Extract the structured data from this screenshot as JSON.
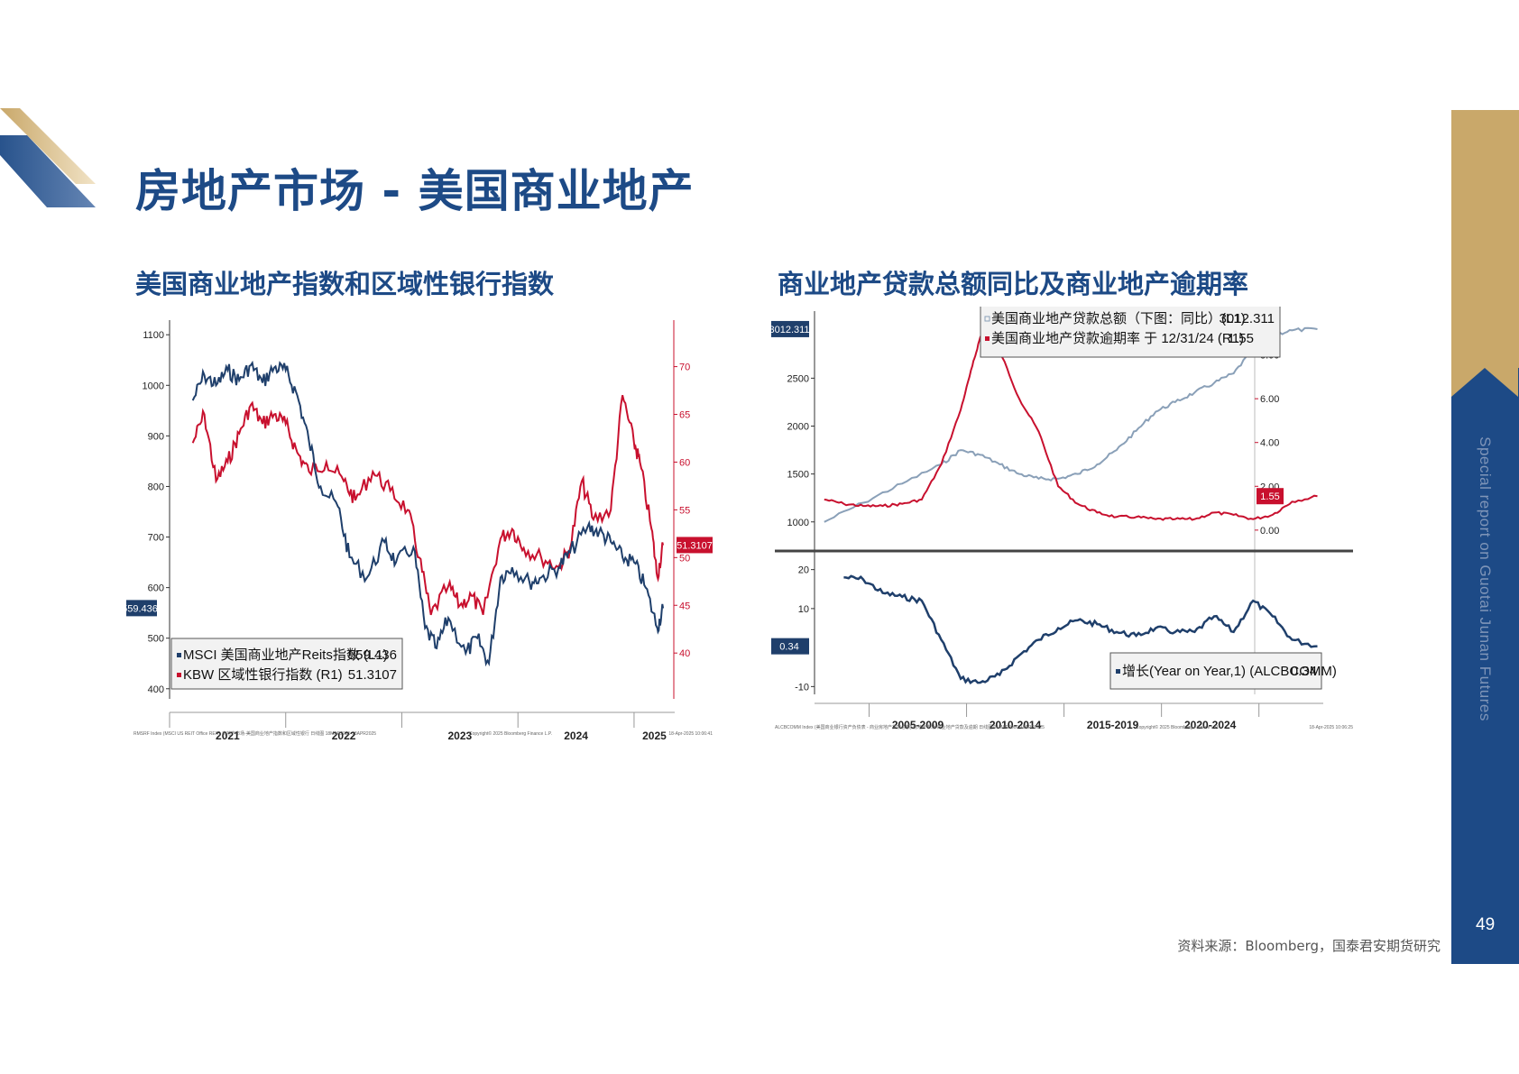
{
  "page": {
    "title": "房地产市场 - 美国商业地产",
    "sidebar_text": "Special report on Guotai Junan Futures",
    "page_number": "49",
    "source": "资料来源：Bloomberg，国泰君安期货研究",
    "colors": {
      "brand_blue": "#1d4a86",
      "gold": "#c9a86a",
      "series_blue": "#1f3f6b",
      "series_red": "#c8102e"
    }
  },
  "left": {
    "subtitle": "美国商业地产指数和区域性银行指数",
    "footer_left": "RMSRF Index (MSCI US REIT Office REIT) 房地产市场-美国商业地产指数和区域性银行  日线图 18MAR2021-18APR2025",
    "footer_mid": "Copyright© 2025 Bloomberg Finance L.P.",
    "footer_right": "18-Apr-2025 10:06:41"
  },
  "right": {
    "subtitle": "商业地产贷款总额同比及商业地产逾期率",
    "footer_left": "ALCBCOMM Index (美国商业银行资产负债表 - 商业房地产贷款总额) 房地产市场-商业地产贷款及逾期  日线图 01MAR2000-18APR2025",
    "footer_mid": "Copyright© 2025 Bloomberg Finance L.P.",
    "footer_right": "18-Apr-2025 10:06:25"
  },
  "chart_data": [
    {
      "type": "line",
      "x_categories": [
        "2021",
        "2022",
        "2023",
        "2024",
        "2025"
      ],
      "y_left": {
        "ticks": [
          400,
          500,
          600,
          700,
          800,
          900,
          1000,
          1100
        ],
        "range": [
          380,
          1120
        ]
      },
      "y_right": {
        "ticks": [
          40,
          45,
          50,
          55,
          60,
          65,
          70
        ],
        "range": [
          35.2,
          74.4
        ]
      },
      "series": [
        {
          "name": "MSCI 美国商业地产Reits指数 (L1)",
          "axis": "left",
          "last_value": "559.436",
          "color": "#1f3f6b",
          "points": [
            [
              2021.2,
              970
            ],
            [
              2021.3,
              1020
            ],
            [
              2021.4,
              1000
            ],
            [
              2021.5,
              1030
            ],
            [
              2021.6,
              1010
            ],
            [
              2021.7,
              1040
            ],
            [
              2021.8,
              1005
            ],
            [
              2021.9,
              1035
            ],
            [
              2022.0,
              1030
            ],
            [
              2022.1,
              980
            ],
            [
              2022.2,
              890
            ],
            [
              2022.3,
              800
            ],
            [
              2022.45,
              760
            ],
            [
              2022.55,
              660
            ],
            [
              2022.7,
              620
            ],
            [
              2022.85,
              690
            ],
            [
              2022.95,
              650
            ],
            [
              2023.1,
              680
            ],
            [
              2023.2,
              520
            ],
            [
              2023.3,
              480
            ],
            [
              2023.4,
              540
            ],
            [
              2023.55,
              470
            ],
            [
              2023.65,
              500
            ],
            [
              2023.75,
              450
            ],
            [
              2023.85,
              620
            ],
            [
              2023.95,
              640
            ],
            [
              2024.1,
              610
            ],
            [
              2024.2,
              620
            ],
            [
              2024.35,
              640
            ],
            [
              2024.45,
              670
            ],
            [
              2024.6,
              720
            ],
            [
              2024.7,
              710
            ],
            [
              2024.8,
              690
            ],
            [
              2024.9,
              660
            ],
            [
              2025.0,
              650
            ],
            [
              2025.1,
              600
            ],
            [
              2025.2,
              520
            ],
            [
              2025.25,
              559
            ]
          ]
        },
        {
          "name": "KBW 区域性银行指数 (R1)",
          "axis": "right",
          "last_value": "51.3107",
          "color": "#c8102e",
          "points": [
            [
              2021.2,
              62
            ],
            [
              2021.3,
              65
            ],
            [
              2021.4,
              58
            ],
            [
              2021.5,
              60
            ],
            [
              2021.6,
              63
            ],
            [
              2021.7,
              66
            ],
            [
              2021.8,
              64
            ],
            [
              2021.9,
              65
            ],
            [
              2022.0,
              64
            ],
            [
              2022.1,
              61
            ],
            [
              2022.2,
              59
            ],
            [
              2022.35,
              60
            ],
            [
              2022.5,
              58
            ],
            [
              2022.6,
              56
            ],
            [
              2022.75,
              59
            ],
            [
              2022.9,
              57
            ],
            [
              2023.05,
              55
            ],
            [
              2023.15,
              50
            ],
            [
              2023.25,
              44
            ],
            [
              2023.4,
              47
            ],
            [
              2023.5,
              45
            ],
            [
              2023.6,
              46
            ],
            [
              2023.7,
              44
            ],
            [
              2023.85,
              52
            ],
            [
              2023.95,
              53
            ],
            [
              2024.05,
              51
            ],
            [
              2024.2,
              50
            ],
            [
              2024.35,
              49
            ],
            [
              2024.45,
              51
            ],
            [
              2024.55,
              58
            ],
            [
              2024.65,
              54
            ],
            [
              2024.8,
              55
            ],
            [
              2024.9,
              67
            ],
            [
              2025.0,
              62
            ],
            [
              2025.05,
              60
            ],
            [
              2025.15,
              53
            ],
            [
              2025.2,
              48
            ],
            [
              2025.25,
              51.3
            ]
          ]
        }
      ]
    },
    {
      "type": "line",
      "x_categories": [
        "2005-2009",
        "2010-2014",
        "2015-2019",
        "2020-2024"
      ],
      "top_panel": {
        "y_left": {
          "ticks": [
            1000,
            1500,
            2000,
            2500
          ],
          "range": [
            800,
            3200
          ]
        },
        "y_right": {
          "ticks": [
            "0.00",
            "2.00",
            "4.00",
            "6.00",
            "8.00"
          ],
          "range": [
            -0.5,
            10
          ]
        },
        "series": [
          {
            "name": "美国商业地产贷款总额（下图：同比）(L1)",
            "axis": "left",
            "last_value": "3012.311",
            "color": "#8aa0b8",
            "points": [
              [
                2000,
                1000
              ],
              [
                2002,
                1200
              ],
              [
                2004,
                1400
              ],
              [
                2006,
                1600
              ],
              [
                2007,
                1750
              ],
              [
                2008,
                1700
              ],
              [
                2009,
                1600
              ],
              [
                2010,
                1500
              ],
              [
                2011,
                1450
              ],
              [
                2012,
                1450
              ],
              [
                2013,
                1500
              ],
              [
                2014,
                1600
              ],
              [
                2015,
                1750
              ],
              [
                2016,
                1950
              ],
              [
                2017,
                2150
              ],
              [
                2018,
                2250
              ],
              [
                2019,
                2350
              ],
              [
                2020,
                2450
              ],
              [
                2021,
                2550
              ],
              [
                2022,
                2800
              ],
              [
                2023,
                2950
              ],
              [
                2024,
                3000
              ],
              [
                2025.3,
                3012
              ]
            ]
          },
          {
            "name": "美国商业地产贷款逾期率 于 12/31/24 (R1)",
            "axis": "right",
            "last_value": "1.55",
            "color": "#c8102e",
            "points": [
              [
                2000,
                1.4
              ],
              [
                2001,
                1.2
              ],
              [
                2002,
                1.1
              ],
              [
                2003,
                1.1
              ],
              [
                2004,
                1.2
              ],
              [
                2005,
                1.4
              ],
              [
                2006,
                3.0
              ],
              [
                2007,
                5.5
              ],
              [
                2007.6,
                7.5
              ],
              [
                2008,
                8.8
              ],
              [
                2009,
                8.2
              ],
              [
                2010,
                6.0
              ],
              [
                2011,
                4.5
              ],
              [
                2012,
                2.0
              ],
              [
                2013,
                1.2
              ],
              [
                2014,
                0.8
              ],
              [
                2015,
                0.6
              ],
              [
                2016,
                0.6
              ],
              [
                2017,
                0.5
              ],
              [
                2018,
                0.5
              ],
              [
                2019,
                0.5
              ],
              [
                2020,
                0.8
              ],
              [
                2021,
                0.7
              ],
              [
                2022,
                0.5
              ],
              [
                2023,
                0.7
              ],
              [
                2024,
                1.3
              ],
              [
                2025.3,
                1.55
              ]
            ]
          }
        ]
      },
      "bottom_panel": {
        "y_left": {
          "ticks": [
            -10,
            10,
            20
          ],
          "range": [
            -12,
            22
          ]
        },
        "series": [
          {
            "name": "增长(Year on Year,1) (ALCBCOMM)",
            "axis": "left",
            "last_value": "0.34",
            "color": "#1f3f6b",
            "points": [
              [
                2001,
                18
              ],
              [
                2002,
                17.5
              ],
              [
                2003,
                14
              ],
              [
                2004,
                13
              ],
              [
                2005,
                12
              ],
              [
                2006,
                2
              ],
              [
                2007,
                -8
              ],
              [
                2008,
                -9
              ],
              [
                2009,
                -7
              ],
              [
                2010,
                -2
              ],
              [
                2011,
                2
              ],
              [
                2012,
                5
              ],
              [
                2013,
                7
              ],
              [
                2014,
                6
              ],
              [
                2015,
                4
              ],
              [
                2016,
                3
              ],
              [
                2017,
                5
              ],
              [
                2018,
                4
              ],
              [
                2019,
                4
              ],
              [
                2020,
                8
              ],
              [
                2021,
                4
              ],
              [
                2022,
                12
              ],
              [
                2023,
                8
              ],
              [
                2024,
                2
              ],
              [
                2025.3,
                0.34
              ]
            ]
          }
        ]
      }
    }
  ]
}
